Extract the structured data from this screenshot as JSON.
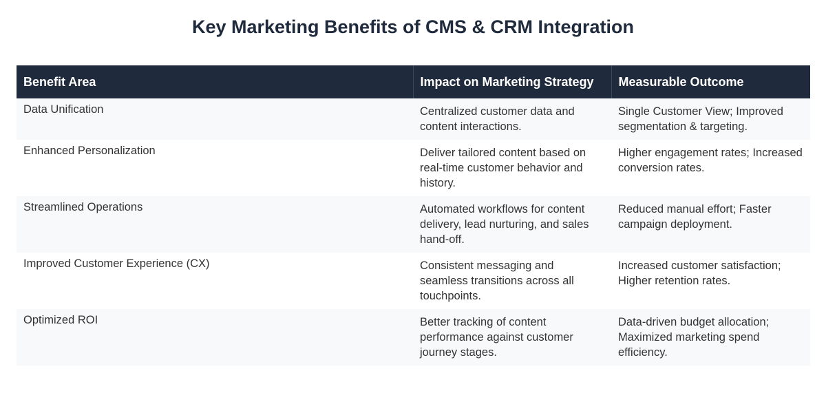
{
  "title": "Key Marketing Benefits of CMS & CRM Integration",
  "table": {
    "headers": [
      "Benefit Area",
      "Impact on Marketing Strategy",
      "Measurable Outcome"
    ],
    "rows": [
      {
        "area": "Data Unification",
        "impact": "Centralized customer data and content interactions.",
        "outcome": "Single Customer View; Improved segmentation & targeting."
      },
      {
        "area": "Enhanced Personalization",
        "impact": "Deliver tailored content based on real-time customer behavior and history.",
        "outcome": "Higher engagement rates; Increased conversion rates."
      },
      {
        "area": "Streamlined Operations",
        "impact": "Automated workflows for content delivery, lead nurturing, and sales hand-off.",
        "outcome": "Reduced manual effort; Faster campaign deployment."
      },
      {
        "area": "Improved Customer Experience (CX)",
        "impact": "Consistent messaging and seamless transitions across all touchpoints.",
        "outcome": "Increased customer satisfaction; Higher retention rates."
      },
      {
        "area": "Optimized ROI",
        "impact": "Better tracking of content performance against customer journey stages.",
        "outcome": "Data-driven budget allocation; Maximized marketing spend efficiency."
      }
    ]
  }
}
